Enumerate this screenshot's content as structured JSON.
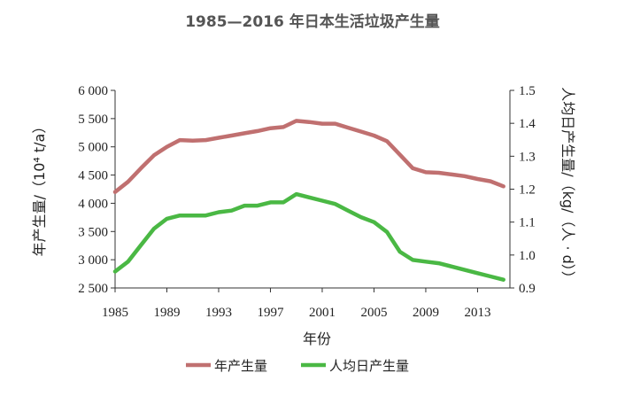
{
  "page": {
    "title": "1985—2016 年日本生活垃圾产生量"
  },
  "chart_data": {
    "type": "line",
    "title": "1985—2016 年日本生活垃圾产生量",
    "xlabel": "年份",
    "ylabel_left": "年产生量/（10⁴ t/a）",
    "ylabel_right": "人均日产生量/（kg/（人 · d））",
    "x_ticks": [
      "1985",
      "1989",
      "1993",
      "1997",
      "2001",
      "2005",
      "2009",
      "2013"
    ],
    "y_left_ticks": [
      "2 500",
      "3 000",
      "3 500",
      "4 000",
      "4 500",
      "5 000",
      "5 500",
      "6 000"
    ],
    "y_right_ticks": [
      "0.9",
      "1.0",
      "1.1",
      "1.2",
      "1.3",
      "1.4",
      "1.5"
    ],
    "xlim": [
      1985,
      2016
    ],
    "ylim_left": [
      2500,
      6000
    ],
    "ylim_right": [
      0.9,
      1.5
    ],
    "x": [
      1985,
      1986,
      1987,
      1988,
      1989,
      1990,
      1991,
      1992,
      1993,
      1994,
      1995,
      1996,
      1997,
      1998,
      1999,
      2000,
      2001,
      2002,
      2003,
      2004,
      2005,
      2006,
      2007,
      2008,
      2009,
      2010,
      2011,
      2012,
      2013,
      2014,
      2015
    ],
    "series": [
      {
        "name": "年产生量",
        "axis": "left",
        "color": "#c07070",
        "values": [
          4200,
          4380,
          4620,
          4850,
          5000,
          5120,
          5110,
          5120,
          5160,
          5200,
          5240,
          5280,
          5330,
          5350,
          5460,
          5440,
          5410,
          5410,
          5340,
          5270,
          5200,
          5100,
          4860,
          4620,
          4550,
          4540,
          4510,
          4480,
          4430,
          4390,
          4300
        ]
      },
      {
        "name": "人均日产生量",
        "axis": "right",
        "color": "#4ab844",
        "values": [
          0.95,
          0.98,
          1.03,
          1.08,
          1.11,
          1.12,
          1.12,
          1.12,
          1.13,
          1.135,
          1.15,
          1.15,
          1.16,
          1.16,
          1.185,
          1.175,
          1.165,
          1.155,
          1.135,
          1.115,
          1.1,
          1.07,
          1.01,
          0.985,
          0.98,
          0.975,
          0.965,
          0.955,
          0.945,
          0.935,
          0.925
        ]
      }
    ],
    "grid": false,
    "legend_position": "bottom"
  }
}
